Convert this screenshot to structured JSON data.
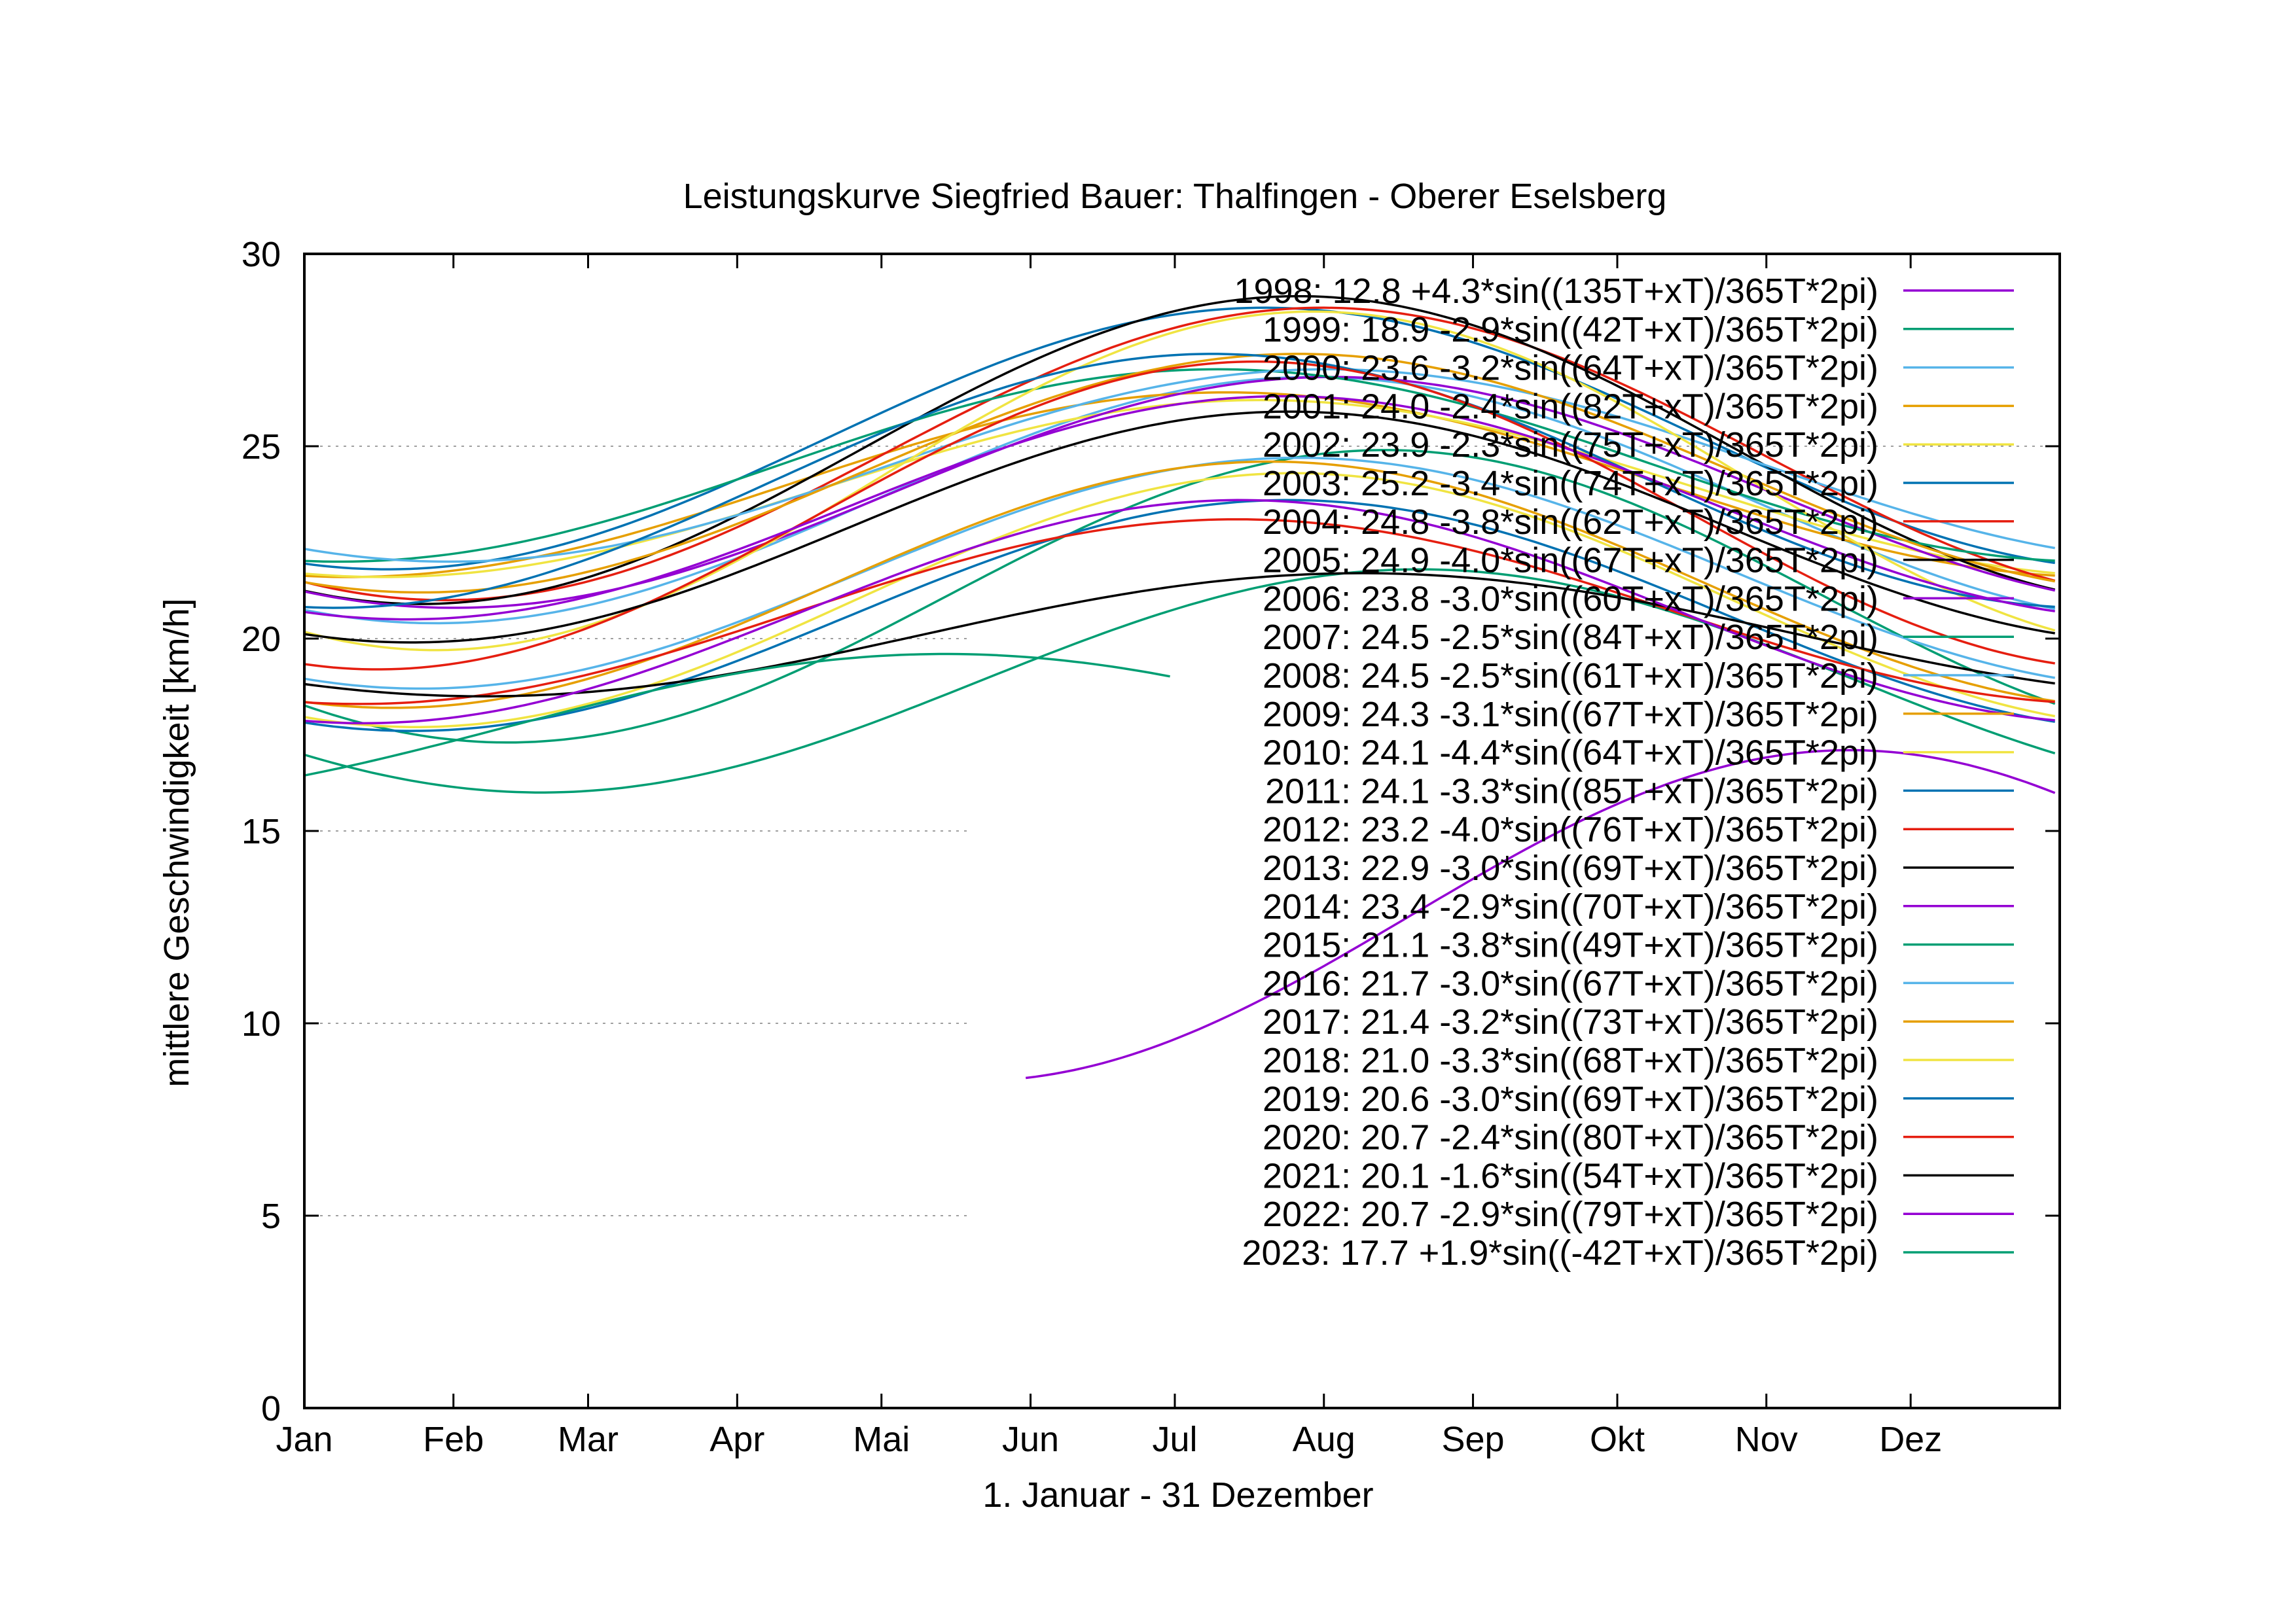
{
  "chart_data": {
    "type": "line",
    "title": "Leistungskurve Siegfried Bauer: Thalfingen - Oberer Eselsberg",
    "xlabel": "1. Januar - 31 Dezember",
    "ylabel": "mittlere Geschwindigkeit [km/h]",
    "xlim": [
      0,
      365
    ],
    "ylim": [
      0,
      30
    ],
    "y_ticks": [
      0,
      5,
      10,
      15,
      20,
      25,
      30
    ],
    "x_ticks": [
      {
        "day": 0,
        "label": "Jan"
      },
      {
        "day": 31,
        "label": "Feb"
      },
      {
        "day": 59,
        "label": "Mar"
      },
      {
        "day": 90,
        "label": "Apr"
      },
      {
        "day": 120,
        "label": "Mai"
      },
      {
        "day": 151,
        "label": "Jun"
      },
      {
        "day": 181,
        "label": "Jul"
      },
      {
        "day": 212,
        "label": "Aug"
      },
      {
        "day": 243,
        "label": "Sep"
      },
      {
        "day": 273,
        "label": "Okt"
      },
      {
        "day": 304,
        "label": "Nov"
      },
      {
        "day": 334,
        "label": "Dez"
      }
    ],
    "grid": "horizontal dotted",
    "legend_position": "top-right",
    "series": [
      {
        "name": "1998: 12.8 +4.3*sin((135T+xT)/365T*2pi)",
        "mean": 12.8,
        "amp": 4.3,
        "phase": 135,
        "x_range": [
          150,
          365
        ],
        "color": "#9400d3"
      },
      {
        "name": "1999: 18.9 -2.9*sin((42T+xT)/365T*2pi)",
        "mean": 18.9,
        "amp": -2.9,
        "phase": 42,
        "x_range": [
          0,
          365
        ],
        "color": "#009e73"
      },
      {
        "name": "2000: 23.6 -3.2*sin((64T+xT)/365T*2pi)",
        "mean": 23.6,
        "amp": -3.2,
        "phase": 64,
        "x_range": [
          0,
          365
        ],
        "color": "#56b4e9"
      },
      {
        "name": "2001: 24.0 -2.4*sin((82T+xT)/365T*2pi)",
        "mean": 24.0,
        "amp": -2.4,
        "phase": 82,
        "x_range": [
          0,
          365
        ],
        "color": "#e69f00"
      },
      {
        "name": "2002: 23.9 -2.3*sin((75T+xT)/365T*2pi)",
        "mean": 23.9,
        "amp": -2.3,
        "phase": 75,
        "x_range": [
          0,
          365
        ],
        "color": "#f0e442"
      },
      {
        "name": "2003: 25.2 -3.4*sin((74T+xT)/365T*2pi)",
        "mean": 25.2,
        "amp": -3.4,
        "phase": 74,
        "x_range": [
          0,
          365
        ],
        "color": "#0072b2"
      },
      {
        "name": "2004: 24.8 -3.8*sin((62T+xT)/365T*2pi)",
        "mean": 24.8,
        "amp": -3.8,
        "phase": 62,
        "x_range": [
          0,
          365
        ],
        "color": "#e51e10"
      },
      {
        "name": "2005: 24.9 -4.0*sin((67T+xT)/365T*2pi)",
        "mean": 24.9,
        "amp": -4.0,
        "phase": 67,
        "x_range": [
          0,
          365
        ],
        "color": "#000000"
      },
      {
        "name": "2006: 23.8 -3.0*sin((60T+xT)/365T*2pi)",
        "mean": 23.8,
        "amp": -3.0,
        "phase": 60,
        "x_range": [
          0,
          365
        ],
        "color": "#9400d3"
      },
      {
        "name": "2007: 24.5 -2.5*sin((84T+xT)/365T*2pi)",
        "mean": 24.5,
        "amp": -2.5,
        "phase": 84,
        "x_range": [
          0,
          365
        ],
        "color": "#009e73"
      },
      {
        "name": "2008: 24.5 -2.5*sin((61T+xT)/365T*2pi)",
        "mean": 24.5,
        "amp": -2.5,
        "phase": 61,
        "x_range": [
          0,
          365
        ],
        "color": "#56b4e9"
      },
      {
        "name": "2009: 24.3 -3.1*sin((67T+xT)/365T*2pi)",
        "mean": 24.3,
        "amp": -3.1,
        "phase": 67,
        "x_range": [
          0,
          365
        ],
        "color": "#e69f00"
      },
      {
        "name": "2010: 24.1 -4.4*sin((64T+xT)/365T*2pi)",
        "mean": 24.1,
        "amp": -4.4,
        "phase": 64,
        "x_range": [
          0,
          365
        ],
        "color": "#f0e442"
      },
      {
        "name": "2011: 24.1 -3.3*sin((85T+xT)/365T*2pi)",
        "mean": 24.1,
        "amp": -3.3,
        "phase": 85,
        "x_range": [
          0,
          365
        ],
        "color": "#0072b2"
      },
      {
        "name": "2012: 23.2 -4.0*sin((76T+xT)/365T*2pi)",
        "mean": 23.2,
        "amp": -4.0,
        "phase": 76,
        "x_range": [
          0,
          365
        ],
        "color": "#e51e10"
      },
      {
        "name": "2013: 22.9 -3.0*sin((69T+xT)/365T*2pi)",
        "mean": 22.9,
        "amp": -3.0,
        "phase": 69,
        "x_range": [
          0,
          365
        ],
        "color": "#000000"
      },
      {
        "name": "2014: 23.4 -2.9*sin((70T+xT)/365T*2pi)",
        "mean": 23.4,
        "amp": -2.9,
        "phase": 70,
        "x_range": [
          0,
          365
        ],
        "color": "#9400d3"
      },
      {
        "name": "2015: 21.1 -3.8*sin((49T+xT)/365T*2pi)",
        "mean": 21.1,
        "amp": -3.8,
        "phase": 49,
        "x_range": [
          0,
          365
        ],
        "color": "#009e73"
      },
      {
        "name": "2016: 21.7 -3.0*sin((67T+xT)/365T*2pi)",
        "mean": 21.7,
        "amp": -3.0,
        "phase": 67,
        "x_range": [
          0,
          365
        ],
        "color": "#56b4e9"
      },
      {
        "name": "2017: 21.4 -3.2*sin((73T+xT)/365T*2pi)",
        "mean": 21.4,
        "amp": -3.2,
        "phase": 73,
        "x_range": [
          0,
          365
        ],
        "color": "#e69f00"
      },
      {
        "name": "2018: 21.0 -3.3*sin((68T+xT)/365T*2pi)",
        "mean": 21.0,
        "amp": -3.3,
        "phase": 68,
        "x_range": [
          0,
          365
        ],
        "color": "#f0e442"
      },
      {
        "name": "2019: 20.6 -3.0*sin((69T+xT)/365T*2pi)",
        "mean": 20.6,
        "amp": -3.0,
        "phase": 69,
        "x_range": [
          0,
          365
        ],
        "color": "#0072b2"
      },
      {
        "name": "2020: 20.7 -2.4*sin((80T+xT)/365T*2pi)",
        "mean": 20.7,
        "amp": -2.4,
        "phase": 80,
        "x_range": [
          0,
          365
        ],
        "color": "#e51e10"
      },
      {
        "name": "2021: 20.1 -1.6*sin((54T+xT)/365T*2pi)",
        "mean": 20.1,
        "amp": -1.6,
        "phase": 54,
        "x_range": [
          0,
          365
        ],
        "color": "#000000"
      },
      {
        "name": "2022: 20.7 -2.9*sin((79T+xT)/365T*2pi)",
        "mean": 20.7,
        "amp": -2.9,
        "phase": 79,
        "x_range": [
          0,
          365
        ],
        "color": "#9400d3"
      },
      {
        "name": "2023: 17.7 +1.9*sin((-42T+xT)/365T*2pi)",
        "mean": 17.7,
        "amp": 1.9,
        "phase": -42,
        "x_range": [
          0,
          180
        ],
        "color": "#009e73"
      }
    ]
  }
}
